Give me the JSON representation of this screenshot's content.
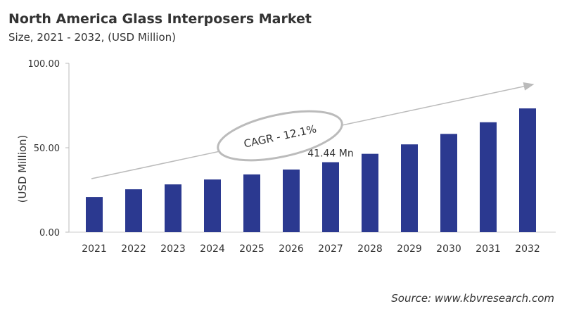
{
  "title": "North America Glass Interposers Market",
  "subtitle": "Size, 2021 - 2032, (USD Million)",
  "source": "Source: www.kbvresearch.com",
  "chart_data": {
    "type": "bar",
    "categories": [
      "2021",
      "2022",
      "2023",
      "2024",
      "2025",
      "2026",
      "2027",
      "2028",
      "2029",
      "2030",
      "2031",
      "2032"
    ],
    "values": [
      20.8,
      25.4,
      28.3,
      31.2,
      34.2,
      37.1,
      41.44,
      46.4,
      52.0,
      58.2,
      65.1,
      73.3
    ],
    "ylabel": "(USD Million)",
    "ylim": [
      0,
      100
    ],
    "yticks": [
      "0.00",
      "50.00",
      "100.00"
    ],
    "ytick_values": [
      0,
      50,
      100
    ],
    "data_label": {
      "category": "2027",
      "text": "41.44 Mn"
    },
    "annotation": "CAGR - 12.1%",
    "bar_color": "#2b3990",
    "grid": false
  }
}
